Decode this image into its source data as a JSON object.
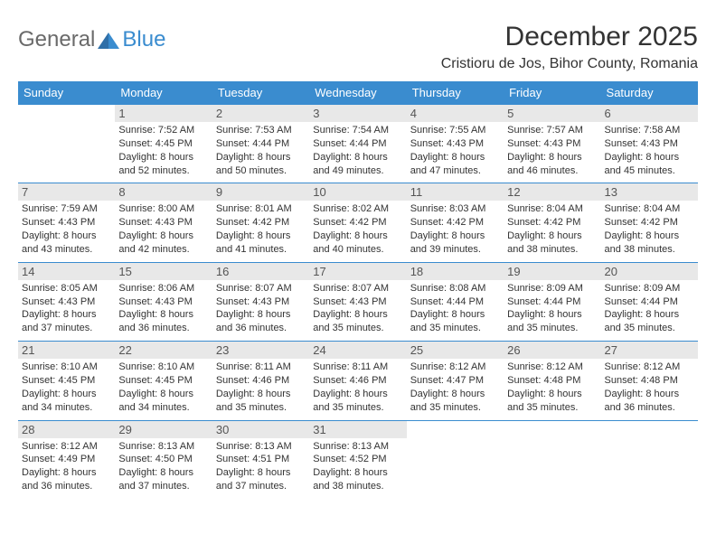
{
  "brand": {
    "part1": "General",
    "part2": "Blue"
  },
  "title": "December 2025",
  "location": "Cristioru de Jos, Bihor County, Romania",
  "colors": {
    "header_bg": "#3a8ccf",
    "header_fg": "#ffffff",
    "daynum_bg": "#e8e8e8",
    "border": "#3a8ccf",
    "text": "#333333"
  },
  "weekdays": [
    "Sunday",
    "Monday",
    "Tuesday",
    "Wednesday",
    "Thursday",
    "Friday",
    "Saturday"
  ],
  "weeks": [
    [
      null,
      {
        "n": "1",
        "sr": "Sunrise: 7:52 AM",
        "ss": "Sunset: 4:45 PM",
        "d1": "Daylight: 8 hours",
        "d2": "and 52 minutes."
      },
      {
        "n": "2",
        "sr": "Sunrise: 7:53 AM",
        "ss": "Sunset: 4:44 PM",
        "d1": "Daylight: 8 hours",
        "d2": "and 50 minutes."
      },
      {
        "n": "3",
        "sr": "Sunrise: 7:54 AM",
        "ss": "Sunset: 4:44 PM",
        "d1": "Daylight: 8 hours",
        "d2": "and 49 minutes."
      },
      {
        "n": "4",
        "sr": "Sunrise: 7:55 AM",
        "ss": "Sunset: 4:43 PM",
        "d1": "Daylight: 8 hours",
        "d2": "and 47 minutes."
      },
      {
        "n": "5",
        "sr": "Sunrise: 7:57 AM",
        "ss": "Sunset: 4:43 PM",
        "d1": "Daylight: 8 hours",
        "d2": "and 46 minutes."
      },
      {
        "n": "6",
        "sr": "Sunrise: 7:58 AM",
        "ss": "Sunset: 4:43 PM",
        "d1": "Daylight: 8 hours",
        "d2": "and 45 minutes."
      }
    ],
    [
      {
        "n": "7",
        "sr": "Sunrise: 7:59 AM",
        "ss": "Sunset: 4:43 PM",
        "d1": "Daylight: 8 hours",
        "d2": "and 43 minutes."
      },
      {
        "n": "8",
        "sr": "Sunrise: 8:00 AM",
        "ss": "Sunset: 4:43 PM",
        "d1": "Daylight: 8 hours",
        "d2": "and 42 minutes."
      },
      {
        "n": "9",
        "sr": "Sunrise: 8:01 AM",
        "ss": "Sunset: 4:42 PM",
        "d1": "Daylight: 8 hours",
        "d2": "and 41 minutes."
      },
      {
        "n": "10",
        "sr": "Sunrise: 8:02 AM",
        "ss": "Sunset: 4:42 PM",
        "d1": "Daylight: 8 hours",
        "d2": "and 40 minutes."
      },
      {
        "n": "11",
        "sr": "Sunrise: 8:03 AM",
        "ss": "Sunset: 4:42 PM",
        "d1": "Daylight: 8 hours",
        "d2": "and 39 minutes."
      },
      {
        "n": "12",
        "sr": "Sunrise: 8:04 AM",
        "ss": "Sunset: 4:42 PM",
        "d1": "Daylight: 8 hours",
        "d2": "and 38 minutes."
      },
      {
        "n": "13",
        "sr": "Sunrise: 8:04 AM",
        "ss": "Sunset: 4:42 PM",
        "d1": "Daylight: 8 hours",
        "d2": "and 38 minutes."
      }
    ],
    [
      {
        "n": "14",
        "sr": "Sunrise: 8:05 AM",
        "ss": "Sunset: 4:43 PM",
        "d1": "Daylight: 8 hours",
        "d2": "and 37 minutes."
      },
      {
        "n": "15",
        "sr": "Sunrise: 8:06 AM",
        "ss": "Sunset: 4:43 PM",
        "d1": "Daylight: 8 hours",
        "d2": "and 36 minutes."
      },
      {
        "n": "16",
        "sr": "Sunrise: 8:07 AM",
        "ss": "Sunset: 4:43 PM",
        "d1": "Daylight: 8 hours",
        "d2": "and 36 minutes."
      },
      {
        "n": "17",
        "sr": "Sunrise: 8:07 AM",
        "ss": "Sunset: 4:43 PM",
        "d1": "Daylight: 8 hours",
        "d2": "and 35 minutes."
      },
      {
        "n": "18",
        "sr": "Sunrise: 8:08 AM",
        "ss": "Sunset: 4:44 PM",
        "d1": "Daylight: 8 hours",
        "d2": "and 35 minutes."
      },
      {
        "n": "19",
        "sr": "Sunrise: 8:09 AM",
        "ss": "Sunset: 4:44 PM",
        "d1": "Daylight: 8 hours",
        "d2": "and 35 minutes."
      },
      {
        "n": "20",
        "sr": "Sunrise: 8:09 AM",
        "ss": "Sunset: 4:44 PM",
        "d1": "Daylight: 8 hours",
        "d2": "and 35 minutes."
      }
    ],
    [
      {
        "n": "21",
        "sr": "Sunrise: 8:10 AM",
        "ss": "Sunset: 4:45 PM",
        "d1": "Daylight: 8 hours",
        "d2": "and 34 minutes."
      },
      {
        "n": "22",
        "sr": "Sunrise: 8:10 AM",
        "ss": "Sunset: 4:45 PM",
        "d1": "Daylight: 8 hours",
        "d2": "and 34 minutes."
      },
      {
        "n": "23",
        "sr": "Sunrise: 8:11 AM",
        "ss": "Sunset: 4:46 PM",
        "d1": "Daylight: 8 hours",
        "d2": "and 35 minutes."
      },
      {
        "n": "24",
        "sr": "Sunrise: 8:11 AM",
        "ss": "Sunset: 4:46 PM",
        "d1": "Daylight: 8 hours",
        "d2": "and 35 minutes."
      },
      {
        "n": "25",
        "sr": "Sunrise: 8:12 AM",
        "ss": "Sunset: 4:47 PM",
        "d1": "Daylight: 8 hours",
        "d2": "and 35 minutes."
      },
      {
        "n": "26",
        "sr": "Sunrise: 8:12 AM",
        "ss": "Sunset: 4:48 PM",
        "d1": "Daylight: 8 hours",
        "d2": "and 35 minutes."
      },
      {
        "n": "27",
        "sr": "Sunrise: 8:12 AM",
        "ss": "Sunset: 4:48 PM",
        "d1": "Daylight: 8 hours",
        "d2": "and 36 minutes."
      }
    ],
    [
      {
        "n": "28",
        "sr": "Sunrise: 8:12 AM",
        "ss": "Sunset: 4:49 PM",
        "d1": "Daylight: 8 hours",
        "d2": "and 36 minutes."
      },
      {
        "n": "29",
        "sr": "Sunrise: 8:13 AM",
        "ss": "Sunset: 4:50 PM",
        "d1": "Daylight: 8 hours",
        "d2": "and 37 minutes."
      },
      {
        "n": "30",
        "sr": "Sunrise: 8:13 AM",
        "ss": "Sunset: 4:51 PM",
        "d1": "Daylight: 8 hours",
        "d2": "and 37 minutes."
      },
      {
        "n": "31",
        "sr": "Sunrise: 8:13 AM",
        "ss": "Sunset: 4:52 PM",
        "d1": "Daylight: 8 hours",
        "d2": "and 38 minutes."
      },
      null,
      null,
      null
    ]
  ]
}
